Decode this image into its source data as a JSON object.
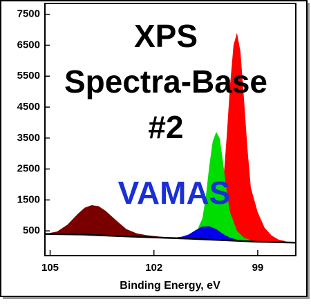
{
  "chart_data": {
    "type": "area",
    "title_lines": [
      "XPS",
      "Spectra-Base",
      "#2"
    ],
    "annotation": "VAMAS",
    "x_label": "Binding Energy, eV",
    "xlim": [
      105.15,
      97.9
    ],
    "xticks": [
      105,
      102,
      99
    ],
    "ylim": [
      -300,
      7850
    ],
    "yticks": [
      500,
      1500,
      2500,
      3500,
      4500,
      5500,
      6500,
      7500
    ],
    "background": {
      "color": "#000000",
      "x": [
        105.15,
        104,
        103,
        102,
        101,
        100,
        99,
        97.9
      ],
      "values": [
        400,
        380,
        330,
        290,
        250,
        200,
        150,
        120
      ]
    },
    "series": [
      {
        "color": "#ff0000",
        "x": [
          100.4,
          100.2,
          100,
          99.9,
          99.8,
          99.7,
          99.6,
          99.5,
          99.4,
          99.3,
          99.2,
          99,
          98.8,
          98.6,
          98.4,
          98.2
        ],
        "values": [
          250,
          700,
          2000,
          3500,
          5200,
          6500,
          6900,
          6300,
          4800,
          3200,
          1900,
          1100,
          600,
          350,
          220,
          170
        ]
      },
      {
        "color": "#00dd00",
        "x": [
          101,
          100.8,
          100.6,
          100.5,
          100.4,
          100.3,
          100.2,
          100.1,
          100,
          99.9,
          99.8,
          99.6,
          99.4,
          99.2
        ],
        "values": [
          260,
          400,
          900,
          1600,
          2600,
          3400,
          3700,
          3500,
          2700,
          1800,
          1100,
          500,
          280,
          200
        ]
      },
      {
        "color": "#0000ee",
        "x": [
          101.5,
          101.2,
          101,
          100.8,
          100.6,
          100.4,
          100.2,
          100,
          99.8,
          99.6
        ],
        "values": [
          270,
          310,
          380,
          520,
          640,
          650,
          560,
          400,
          280,
          220
        ]
      },
      {
        "color": "#7a0000",
        "x": [
          105.15,
          104.8,
          104.5,
          104.2,
          104,
          103.8,
          103.6,
          103.4,
          103.1,
          102.8,
          102.5,
          102.2,
          101.8,
          101.5
        ],
        "values": [
          400,
          480,
          700,
          1050,
          1250,
          1330,
          1300,
          1150,
          850,
          560,
          420,
          360,
          310,
          280
        ]
      }
    ]
  }
}
